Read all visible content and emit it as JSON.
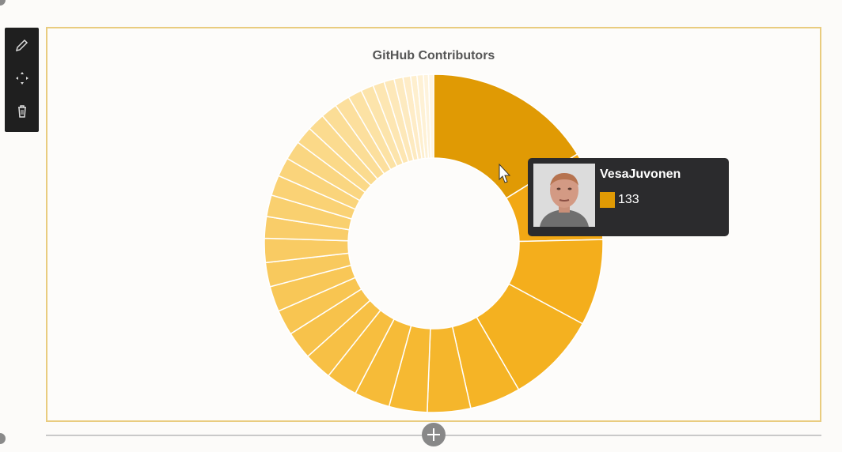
{
  "toolbar": {
    "edit_icon": "pencil-icon",
    "move_icon": "move-icon",
    "delete_icon": "trash-icon"
  },
  "chart_data": {
    "type": "pie",
    "style": "donut",
    "title": "GitHub Contributors",
    "highlight_color": "#e09a04",
    "colors": [
      "#e09a04",
      "#f2a814",
      "#f4ae1c",
      "#f4b120",
      "#f5b426",
      "#f5b62c",
      "#f6b932",
      "#f6bb38",
      "#f7be3f",
      "#f7c045",
      "#f7c24b",
      "#f8c551",
      "#f8c757",
      "#f8c95d",
      "#f9cb63",
      "#f9cd69",
      "#f9d06f",
      "#fad275",
      "#fad47b",
      "#fad681",
      "#fbd988",
      "#fbdb8f",
      "#fbdd96",
      "#fcdf9d",
      "#fce2a4",
      "#fce4ab",
      "#fde6b2",
      "#fde8b9",
      "#fdeac0",
      "#feecc7",
      "#feefce",
      "#fef1d5",
      "#fef3dc",
      "#fef5e3"
    ],
    "values": [
      133,
      70,
      68,
      72,
      40,
      34,
      30,
      28,
      25,
      22,
      22,
      20,
      20,
      19,
      19,
      17,
      17,
      16,
      15,
      15,
      14,
      14,
      13,
      12,
      11,
      10,
      9,
      8,
      7,
      6,
      5,
      5,
      4,
      4
    ]
  },
  "tooltip": {
    "name": "VesaJuvonen",
    "value": "133",
    "swatch_color": "#e09a04"
  }
}
